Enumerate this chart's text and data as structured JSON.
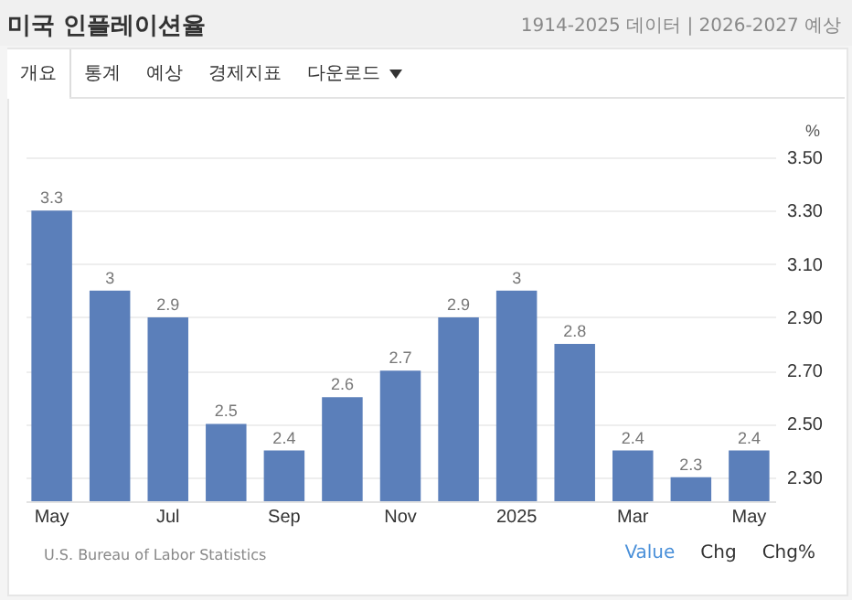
{
  "chart_data": {
    "type": "bar",
    "title": "미국 인플레이션율",
    "subtitle": "1914-2025 데이터 | 2026-2027 예상",
    "ylabel": "%",
    "annotations": [
      "U.S. Bureau of Labor Statistics",
      "개요",
      "통계",
      "예상",
      "경제지표",
      "다운로드",
      "Value",
      "Chg",
      "Chg%"
    ],
    "categories": [
      "May",
      null,
      "Jul",
      null,
      "Sep",
      null,
      "Nov",
      null,
      "2025",
      null,
      "Mar",
      null,
      "May"
    ],
    "values": [
      3.3,
      3,
      2.9,
      2.5,
      2.4,
      2.6,
      2.7,
      2.9,
      3,
      2.8,
      2.4,
      2.3,
      2.4
    ],
    "color": "#5b7fba",
    "data_labels": true,
    "grid": "y",
    "ylim": [
      2.21,
      3.5
    ],
    "yticks": [
      {
        "value": 2.3,
        "label": "2.30"
      },
      {
        "value": 2.5,
        "label": "2.50"
      },
      {
        "value": 2.7,
        "label": "2.70"
      },
      {
        "value": 2.9,
        "label": "2.90"
      },
      {
        "value": 3.1,
        "label": "3.10"
      },
      {
        "value": 3.3,
        "label": "3.30"
      },
      {
        "value": 3.5,
        "label": "3.50"
      }
    ]
  }
}
